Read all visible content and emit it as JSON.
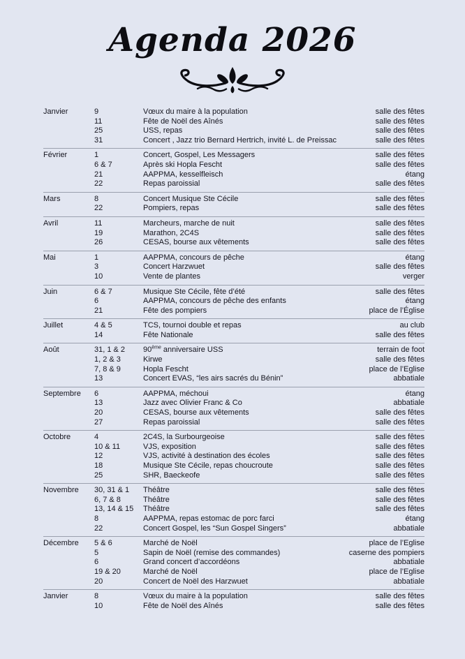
{
  "page": {
    "title": "Agenda 2026",
    "background_color": "#e2e6f1",
    "text_color": "#15151f",
    "divider_color": "#9aa0ae",
    "title_color": "#0d0d12"
  },
  "agenda": {
    "sections": [
      {
        "month": "Janvier",
        "events": [
          {
            "dates": "9",
            "label": "Vœux du maire à la population",
            "location": "salle des fêtes"
          },
          {
            "dates": "11",
            "label": "Fête de Noël des Aînés",
            "location": "salle des fêtes"
          },
          {
            "dates": "25",
            "label": "USS, repas",
            "location": "salle des fêtes"
          },
          {
            "dates": "31",
            "label": "Concert , Jazz trio Bernard Hertrich, invité L. de Preissac",
            "location": "salle des fêtes"
          }
        ]
      },
      {
        "month": "Février",
        "events": [
          {
            "dates": "1",
            "label": "Concert, Gospel, Les Messagers",
            "location": "salle des fêtes"
          },
          {
            "dates": "6 & 7",
            "label": "Après ski Hopla Fescht",
            "location": "salle des fêtes"
          },
          {
            "dates": "21",
            "label": "AAPPMA, kesselfleisch",
            "location": "étang"
          },
          {
            "dates": "22",
            "label": "Repas paroissial",
            "location": "salle des fêtes"
          }
        ]
      },
      {
        "month": "Mars",
        "events": [
          {
            "dates": "8",
            "label": "Concert Musique Ste Cécile",
            "location": "salle des fêtes"
          },
          {
            "dates": "22",
            "label": "Pompiers, repas",
            "location": "salle des fêtes"
          }
        ]
      },
      {
        "month": "Avril",
        "events": [
          {
            "dates": "11",
            "label": "Marcheurs, marche de nuit",
            "location": "salle des fêtes"
          },
          {
            "dates": "19",
            "label": "Marathon, 2C4S",
            "location": "salle des fêtes"
          },
          {
            "dates": "26",
            "label": "CESAS, bourse aux vêtements",
            "location": "salle des fêtes"
          }
        ]
      },
      {
        "month": "Mai",
        "events": [
          {
            "dates": "1",
            "label": "AAPPMA, concours de pêche",
            "location": "étang"
          },
          {
            "dates": "3",
            "label": "Concert Harzwuet",
            "location": "salle des fêtes"
          },
          {
            "dates": "10",
            "label": "Vente de plantes",
            "location": "verger"
          }
        ]
      },
      {
        "month": "Juin",
        "events": [
          {
            "dates": "6 & 7",
            "label": "Musique Ste Cécile, fête d’été",
            "location": "salle des fêtes"
          },
          {
            "dates": "6",
            "label": "AAPPMA, concours de pêche des enfants",
            "location": "étang"
          },
          {
            "dates": "21",
            "label": "Fête des pompiers",
            "location": "place de l’Église"
          }
        ]
      },
      {
        "month": "Juillet",
        "events": [
          {
            "dates": "4 & 5",
            "label": "TCS, tournoi double et repas",
            "location": "au club"
          },
          {
            "dates": "14",
            "label": "Fête Nationale",
            "location": "salle des fêtes"
          }
        ]
      },
      {
        "month": "Août",
        "events": [
          {
            "dates": "31, 1 & 2",
            "label": "90ème anniversaire USS",
            "label_parts": [
              {
                "text": "90"
              },
              {
                "text": "ème",
                "sup": true
              },
              {
                "text": " anniversaire USS"
              }
            ],
            "location": "terrain de foot"
          },
          {
            "dates": "1, 2 & 3",
            "label": "Kirwe",
            "location": "salle des fêtes"
          },
          {
            "dates": "7, 8 & 9",
            "label": "Hopla Fescht",
            "location": "place de l’Eglise"
          },
          {
            "dates": "13",
            "label": "Concert EVAS, “les airs sacrés du Bénin”",
            "location": "abbatiale"
          }
        ]
      },
      {
        "month": "Septembre",
        "events": [
          {
            "dates": "6",
            "label": "AAPPMA, méchoui",
            "location": "étang"
          },
          {
            "dates": "13",
            "label": "Jazz avec Olivier Franc & Co",
            "location": "abbatiale"
          },
          {
            "dates": "20",
            "label": "CESAS, bourse aux vêtements",
            "location": "salle des fêtes"
          },
          {
            "dates": "27",
            "label": "Repas paroissial",
            "location": "salle des fêtes"
          }
        ]
      },
      {
        "month": "Octobre",
        "events": [
          {
            "dates": "4",
            "label": "2C4S, la Surbourgeoise",
            "location": "salle des fêtes"
          },
          {
            "dates": "10 & 11",
            "label": "VJS, exposition",
            "location": "salle des fêtes"
          },
          {
            "dates": "12",
            "label": "VJS, activité à destination des écoles",
            "location": "salle des fêtes"
          },
          {
            "dates": "18",
            "label": "Musique Ste Cécile, repas choucroute",
            "location": "salle des fêtes"
          },
          {
            "dates": "25",
            "label": "SHR, Baeckeofe",
            "location": "salle des fêtes"
          }
        ]
      },
      {
        "month": "Novembre",
        "events": [
          {
            "dates": "30, 31 & 1",
            "label": "Théâtre",
            "location": "salle des fêtes"
          },
          {
            "dates": "6, 7 & 8",
            "label": "Théâtre",
            "location": "salle des fêtes"
          },
          {
            "dates": "13, 14 & 15",
            "label": "Théâtre",
            "location": "salle des fêtes"
          },
          {
            "dates": "8",
            "label": "AAPPMA, repas estomac de porc farci",
            "location": "étang"
          },
          {
            "dates": "22",
            "label": "Concert Gospel, les “Sun Gospel Singers”",
            "location": "abbatiale"
          }
        ]
      },
      {
        "month": "Décembre",
        "events": [
          {
            "dates": "5 & 6",
            "label": "Marché de Noël",
            "location": "place de l’Eglise"
          },
          {
            "dates": "5",
            "label": "Sapin de Noël (remise des commandes)",
            "location": "caserne des pompiers"
          },
          {
            "dates": "6",
            "label": "Grand concert d’accordéons",
            "location": "abbatiale"
          },
          {
            "dates": "19 & 20",
            "label": "Marché de Noël",
            "location": "place de l’Eglise"
          },
          {
            "dates": "20",
            "label": "Concert de Noël des Harzwuet",
            "location": "abbatiale"
          }
        ]
      },
      {
        "month": "Janvier",
        "events": [
          {
            "dates": "8",
            "label": "Vœux du maire à la population",
            "location": "salle des fêtes"
          },
          {
            "dates": "10",
            "label": "Fête de Noël des Aînés",
            "location": "salle des fêtes"
          }
        ]
      }
    ]
  }
}
